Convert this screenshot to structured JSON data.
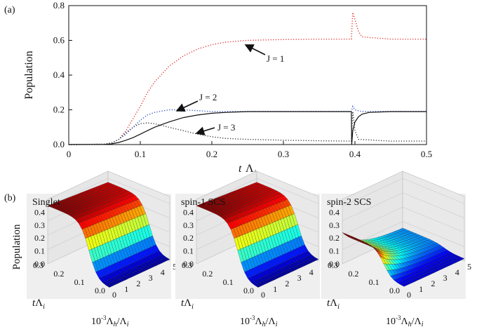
{
  "panel_a": {
    "label": "(a)",
    "ylabel": "Population",
    "xlabel_main": "t",
    "xlabel_sym": "Λ",
    "xlabel_sub": "i",
    "annotations": [
      "J = 1",
      "J = 2",
      "J = 3"
    ]
  },
  "panel_b": {
    "label": "(b)",
    "ylabel": "Population",
    "titles": [
      "Singlet",
      "spin-1  SCS",
      "spin-2  SCS"
    ],
    "zticks": [
      "0.0",
      "0.1",
      "0.2",
      "0.3",
      "0.4"
    ],
    "yticks": [
      "0.0",
      "0.1",
      "0.2",
      "0.3"
    ],
    "xticks": [
      "0",
      "1",
      "2",
      "3",
      "4",
      "5"
    ],
    "ylabel_axis": "tΛ",
    "ylabel_axis_sub": "i",
    "xlabel_axis_pre": "10",
    "xlabel_axis_exp": "-3",
    "xlabel_axis_post": "Λ",
    "xlabel_axis_sub": "h",
    "xlabel_axis_end": "/Λ",
    "xlabel_axis_sub2": "i"
  },
  "chart_data": [
    {
      "type": "line",
      "xlim": [
        0,
        0.5
      ],
      "ylim": [
        0,
        0.8
      ],
      "xticks": [
        "0",
        "0.1",
        "0.2",
        "0.3",
        "0.4",
        "0.5"
      ],
      "yticks": [
        "0.0",
        "0.2",
        "0.4",
        "0.6",
        "0.8"
      ],
      "series": [
        {
          "name": "J = 1",
          "color": "#e03030",
          "style": "dotted",
          "x": [
            0,
            0.05,
            0.06,
            0.07,
            0.08,
            0.09,
            0.1,
            0.11,
            0.12,
            0.14,
            0.16,
            0.18,
            0.2,
            0.22,
            0.25,
            0.3,
            0.35,
            0.395,
            0.397,
            0.4,
            0.405,
            0.41,
            0.45,
            0.5
          ],
          "y": [
            0,
            0.002,
            0.01,
            0.03,
            0.08,
            0.15,
            0.22,
            0.3,
            0.36,
            0.45,
            0.51,
            0.55,
            0.575,
            0.59,
            0.6,
            0.605,
            0.607,
            0.607,
            0.76,
            0.72,
            0.65,
            0.62,
            0.607,
            0.607
          ]
        },
        {
          "name": "J = 2",
          "color": "#3050c0",
          "style": "dotted",
          "x": [
            0,
            0.05,
            0.06,
            0.07,
            0.08,
            0.09,
            0.1,
            0.11,
            0.12,
            0.14,
            0.16,
            0.18,
            0.2,
            0.25,
            0.3,
            0.35,
            0.395,
            0.397,
            0.4,
            0.405,
            0.41,
            0.45,
            0.5
          ],
          "y": [
            0,
            0.002,
            0.01,
            0.03,
            0.06,
            0.1,
            0.14,
            0.17,
            0.185,
            0.2,
            0.2,
            0.195,
            0.19,
            0.19,
            0.19,
            0.19,
            0.19,
            0.22,
            0.2,
            0.195,
            0.19,
            0.19,
            0.19
          ]
        },
        {
          "name": "J = 3",
          "color": "#333333",
          "style": "dotted",
          "x": [
            0,
            0.05,
            0.06,
            0.07,
            0.08,
            0.09,
            0.1,
            0.11,
            0.12,
            0.13,
            0.14,
            0.16,
            0.18,
            0.2,
            0.22,
            0.25,
            0.3,
            0.35,
            0.395,
            0.397,
            0.4,
            0.405,
            0.45,
            0.5
          ],
          "y": [
            0,
            0.002,
            0.01,
            0.03,
            0.07,
            0.1,
            0.12,
            0.125,
            0.12,
            0.11,
            0.1,
            0.08,
            0.06,
            0.045,
            0.035,
            0.03,
            0.025,
            0.022,
            0.02,
            0.19,
            0.08,
            0.03,
            0.02,
            0.02
          ]
        },
        {
          "name": "Singlet",
          "color": "#111111",
          "style": "solid",
          "x": [
            0,
            0.05,
            0.06,
            0.07,
            0.08,
            0.09,
            0.1,
            0.11,
            0.12,
            0.14,
            0.16,
            0.18,
            0.2,
            0.22,
            0.25,
            0.3,
            0.35,
            0.395,
            0.3955,
            0.397,
            0.4,
            0.405,
            0.41,
            0.42,
            0.45,
            0.5
          ],
          "y": [
            0,
            0.001,
            0.004,
            0.012,
            0.025,
            0.04,
            0.06,
            0.08,
            0.1,
            0.13,
            0.155,
            0.17,
            0.18,
            0.185,
            0.19,
            0.19,
            0.19,
            0.19,
            0.0,
            0.08,
            0.13,
            0.16,
            0.175,
            0.185,
            0.19,
            0.19
          ]
        }
      ]
    },
    {
      "type": "heatmap",
      "title": "Singlet",
      "x_range": [
        0,
        5
      ],
      "y_range": [
        0,
        0.3
      ],
      "z_range": [
        0,
        0.4
      ],
      "surface": "population rises from ~0 at tΛi=0 to plateau ~0.45, nearly independent of Λh"
    },
    {
      "type": "heatmap",
      "title": "spin-1  SCS",
      "x_range": [
        0,
        5
      ],
      "y_range": [
        0,
        0.3
      ],
      "z_range": [
        0,
        0.4
      ],
      "surface": "population rises from ~0 at tΛi=0 to plateau ~0.45, nearly independent of Λh"
    },
    {
      "type": "heatmap",
      "title": "spin-2  SCS",
      "x_range": [
        0,
        5
      ],
      "y_range": [
        0,
        0.3
      ],
      "z_range": [
        0,
        0.4
      ],
      "surface": "population rises to ~0.25 at small Λh then decays toward ~0.05 at large Λh"
    }
  ]
}
